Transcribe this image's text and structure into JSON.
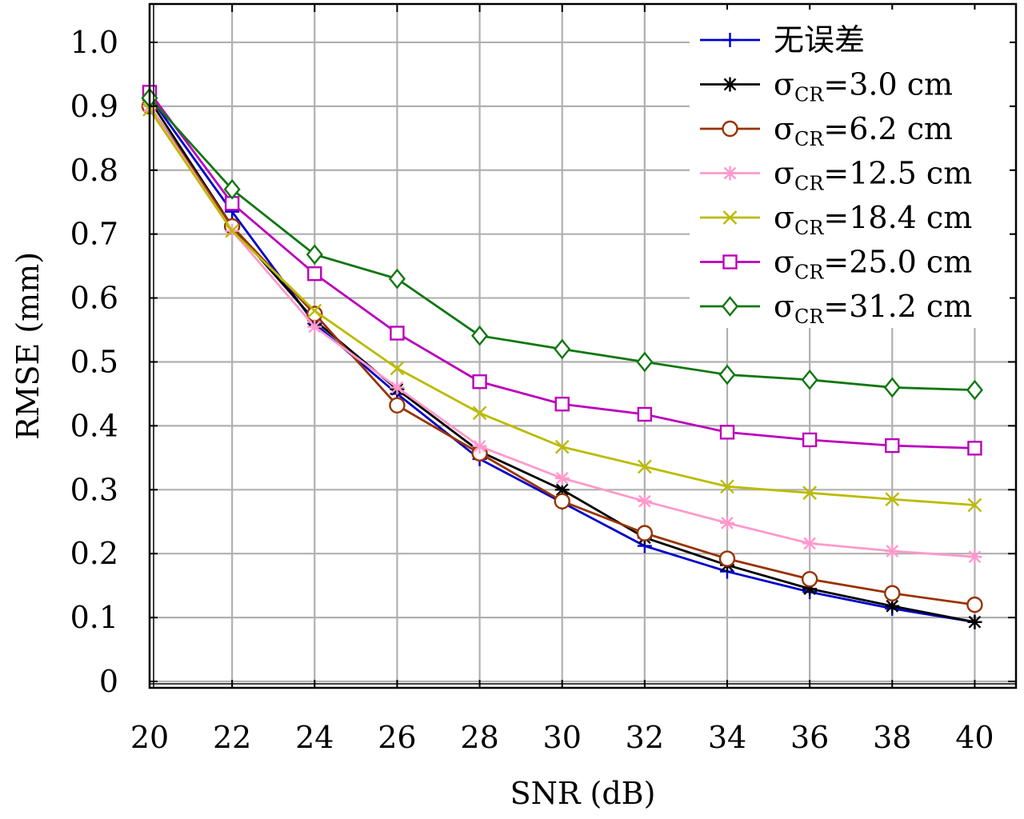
{
  "chart_data": {
    "type": "line",
    "xlabel": "SNR (dB)",
    "ylabel": "RMSE (mm)",
    "xlim": [
      20,
      41
    ],
    "ylim": [
      -0.01,
      1.06
    ],
    "xticks": [
      20,
      22,
      24,
      26,
      28,
      30,
      32,
      34,
      36,
      38,
      40
    ],
    "xtick_labels": [
      "20",
      "22",
      "24",
      "26",
      "28",
      "30",
      "32",
      "34",
      "36",
      "38",
      "40"
    ],
    "yticks": [
      0,
      0.1,
      0.2,
      0.3,
      0.4,
      0.5,
      0.6,
      0.7,
      0.8,
      0.9,
      1.0
    ],
    "ytick_labels": [
      "0",
      "0.1",
      "0.2",
      "0.3",
      "0.4",
      "0.5",
      "0.6",
      "0.7",
      "0.8",
      "0.9",
      "1.0"
    ],
    "grid": true,
    "legend_position": "top-right",
    "x": [
      20,
      22,
      24,
      26,
      28,
      30,
      32,
      34,
      36,
      38,
      40
    ],
    "series": [
      {
        "name": "无误差",
        "name_main": "无误差",
        "name_sub": "",
        "name_rest": "",
        "color": "#0000cc",
        "marker": "plus",
        "values": [
          0.915,
          0.735,
          0.56,
          0.45,
          0.348,
          0.28,
          0.212,
          0.172,
          0.14,
          0.114,
          0.093
        ]
      },
      {
        "name": "σCR=3.0 cm",
        "name_main": "σ",
        "name_sub": "CR",
        "name_rest": "=3.0 cm",
        "color": "#000000",
        "marker": "asterisk",
        "values": [
          0.91,
          0.712,
          0.565,
          0.457,
          0.36,
          0.3,
          0.225,
          0.182,
          0.145,
          0.118,
          0.093
        ]
      },
      {
        "name": "σCR=6.2 cm",
        "name_main": "σ",
        "name_sub": "CR",
        "name_rest": "=6.2 cm",
        "color": "#993300",
        "marker": "circle",
        "values": [
          0.9,
          0.712,
          0.575,
          0.432,
          0.357,
          0.282,
          0.232,
          0.192,
          0.16,
          0.138,
          0.12
        ]
      },
      {
        "name": "σCR=12.5 cm",
        "name_main": "σ",
        "name_sub": "CR",
        "name_rest": "=12.5 cm",
        "color": "#ff99cc",
        "marker": "asterisk",
        "values": [
          0.9,
          0.705,
          0.555,
          0.46,
          0.368,
          0.318,
          0.282,
          0.248,
          0.216,
          0.204,
          0.195
        ]
      },
      {
        "name": "σCR=18.4 cm",
        "name_main": "σ",
        "name_sub": "CR",
        "name_rest": "=18.4 cm",
        "color": "#bbbb00",
        "marker": "x",
        "values": [
          0.895,
          0.705,
          0.58,
          0.49,
          0.42,
          0.367,
          0.336,
          0.305,
          0.295,
          0.285,
          0.276
        ]
      },
      {
        "name": "σCR=25.0 cm",
        "name_main": "σ",
        "name_sub": "CR",
        "name_rest": "=25.0 cm",
        "color": "#bb00bb",
        "marker": "square",
        "values": [
          0.922,
          0.748,
          0.638,
          0.545,
          0.469,
          0.434,
          0.418,
          0.39,
          0.378,
          0.369,
          0.365
        ]
      },
      {
        "name": "σCR=31.2 cm",
        "name_main": "σ",
        "name_sub": "CR",
        "name_rest": "=31.2 cm",
        "color": "#117711",
        "marker": "diamond",
        "values": [
          0.913,
          0.77,
          0.668,
          0.63,
          0.541,
          0.52,
          0.5,
          0.48,
          0.472,
          0.46,
          0.456
        ]
      }
    ]
  }
}
